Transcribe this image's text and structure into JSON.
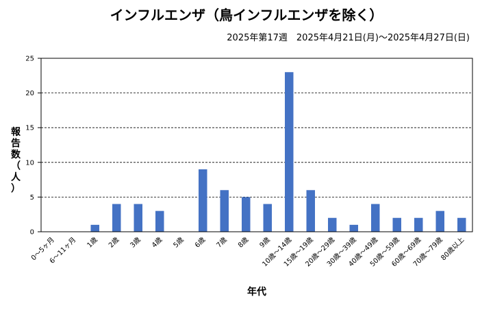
{
  "chart_data": {
    "type": "bar",
    "title": "インフルエンザ（鳥インフルエンザを除く）",
    "subtitle": "2025年第17週　2025年4月21日(月)〜2025年4月27日(日)",
    "xlabel": "年代",
    "ylabel": "報告数（人）",
    "ylim": [
      0,
      25
    ],
    "yticks": [
      0,
      5,
      10,
      15,
      20,
      25
    ],
    "grid": true,
    "bar_color": "#4472C4",
    "categories": [
      "0〜5ヶ月",
      "6〜11ヶ月",
      "1歳",
      "2歳",
      "3歳",
      "4歳",
      "5歳",
      "6歳",
      "7歳",
      "8歳",
      "9歳",
      "10歳〜14歳",
      "15歳〜19歳",
      "20歳〜29歳",
      "30歳〜39歳",
      "40歳〜49歳",
      "50歳〜59歳",
      "60歳〜69歳",
      "70歳〜79歳",
      "80歳以上"
    ],
    "values": [
      0,
      0,
      1,
      4,
      4,
      3,
      0,
      9,
      6,
      5,
      4,
      23,
      6,
      2,
      1,
      4,
      2,
      2,
      3,
      2
    ]
  }
}
